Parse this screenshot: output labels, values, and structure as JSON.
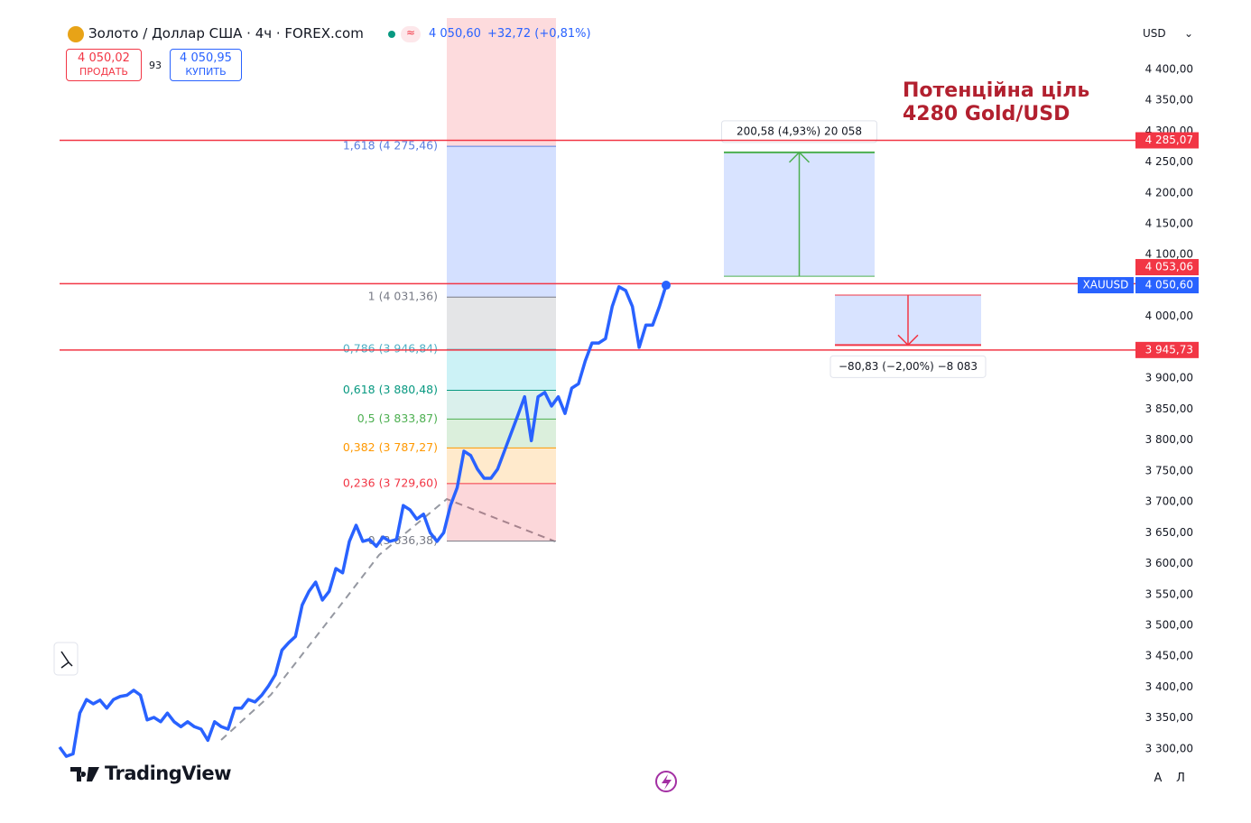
{
  "header": {
    "symbol": "Золото / Доллар США · 4ч · FOREX.com",
    "price": "4 050,60",
    "change": "+32,72 (+0,81%)",
    "sell_price": "4 050,02",
    "sell_label": "ПРОДАТЬ",
    "spread": "93",
    "buy_price": "4 050,95",
    "buy_label": "КУПИТЬ",
    "currency": "USD",
    "logo": "TradingView",
    "buttons": [
      "A",
      "Л"
    ]
  },
  "chart_data": {
    "type": "line",
    "annotation": [
      "Потенційна ціль",
      "4280 Gold/USD"
    ],
    "ylim": [
      3278,
      4483
    ],
    "yticks": [
      {
        "value": 3300,
        "label": "3 300,00"
      },
      {
        "value": 3350,
        "label": "3 350,00"
      },
      {
        "value": 3400,
        "label": "3 400,00"
      },
      {
        "value": 3450,
        "label": "3 450,00"
      },
      {
        "value": 3500,
        "label": "3 500,00"
      },
      {
        "value": 3550,
        "label": "3 550,00"
      },
      {
        "value": 3600,
        "label": "3 600,00"
      },
      {
        "value": 3650,
        "label": "3 650,00"
      },
      {
        "value": 3700,
        "label": "3 700,00"
      },
      {
        "value": 3750,
        "label": "3 750,00"
      },
      {
        "value": 3800,
        "label": "3 800,00"
      },
      {
        "value": 3850,
        "label": "3 850,00"
      },
      {
        "value": 3900,
        "label": "3 900,00"
      },
      {
        "value": 3950,
        "label": "3 950,00"
      },
      {
        "value": 4000,
        "label": "4 000,00"
      },
      {
        "value": 4050,
        "label": "4 050,00"
      },
      {
        "value": 4100,
        "label": "4 100,00"
      },
      {
        "value": 4150,
        "label": "4 150,00"
      },
      {
        "value": 4200,
        "label": "4 200,00"
      },
      {
        "value": 4250,
        "label": "4 250,00"
      },
      {
        "value": 4300,
        "label": "4 300,00"
      },
      {
        "value": 4350,
        "label": "4 350,00"
      },
      {
        "value": 4400,
        "label": "4 400,00"
      }
    ],
    "series": [
      {
        "name": "XAUUSD",
        "color": "#2962ff",
        "last_label": "4 050,60",
        "values": [
          3303,
          3288,
          3292,
          3358,
          3380,
          3373,
          3379,
          3366,
          3380,
          3385,
          3387,
          3395,
          3387,
          3347,
          3351,
          3344,
          3358,
          3344,
          3336,
          3344,
          3336,
          3332,
          3314,
          3344,
          3336,
          3332,
          3366,
          3366,
          3380,
          3376,
          3387,
          3402,
          3420,
          3460,
          3472,
          3482,
          3533,
          3555,
          3570,
          3541,
          3555,
          3592,
          3585,
          3636,
          3662,
          3636,
          3639,
          3628,
          3643,
          3636,
          3639,
          3694,
          3687,
          3672,
          3680,
          3650,
          3636,
          3650,
          3694,
          3723,
          3782,
          3775,
          3753,
          3738,
          3738,
          3753,
          3782,
          3811,
          3840,
          3870,
          3799,
          3870,
          3877,
          3855,
          3870,
          3843,
          3884,
          3891,
          3928,
          3957,
          3957,
          3964,
          4016,
          4048,
          4042,
          4016,
          3950,
          3986,
          3986,
          4016,
          4050.6
        ]
      }
    ],
    "hlines": [
      {
        "value": 4285.07,
        "label": "4 285,07",
        "color": "#f23645"
      },
      {
        "value": 4053.06,
        "label": "4 053,06",
        "color": "#f23645"
      },
      {
        "value": 3945.73,
        "label": "3 945,73",
        "color": "#f23645"
      }
    ],
    "fib_levels": [
      {
        "value": 4275.46,
        "label": "1,618 (4 275,46)",
        "color": "#5b7fe0",
        "zone": "rgba(41,98,255,0.2)"
      },
      {
        "value": 4031.36,
        "label": "1 (4 031,36)",
        "color": "#787b86",
        "zone": "rgba(120,123,134,0.2)"
      },
      {
        "value": 3946.84,
        "label": "0,786 (3 946,84)",
        "color": "#4fb0c6",
        "zone": "rgba(0,188,212,0.2)"
      },
      {
        "value": 3880.48,
        "label": "0,618 (3 880,48)",
        "color": "#089981",
        "zone": "rgba(8,153,129,0.15)"
      },
      {
        "value": 3833.87,
        "label": "0,5 (3 833,87)",
        "color": "#4caf50",
        "zone": "rgba(76,175,80,0.2)"
      },
      {
        "value": 3787.27,
        "label": "0,382 (3 787,27)",
        "color": "#ff9800",
        "zone": "rgba(255,152,0,0.2)"
      },
      {
        "value": 3729.6,
        "label": "0,236 (3 729,60)",
        "color": "#f23645",
        "zone": "rgba(242,54,69,0.2)"
      },
      {
        "value": 3636.38,
        "label": "0 (3 636,38)",
        "color": "#787b86",
        "zone": null
      }
    ],
    "measures": [
      {
        "from": 4065,
        "to": 4265.58,
        "label": "200,58 (4,93%) 20 058",
        "color": "#4caf50"
      },
      {
        "from": 4034.6,
        "to": 3953.77,
        "label": "−80,83 (−2,00%) −8 083",
        "color": "#f23645"
      }
    ]
  }
}
